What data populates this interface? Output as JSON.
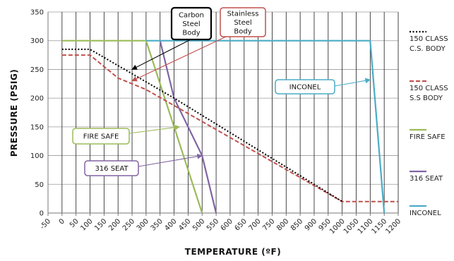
{
  "chart_data": {
    "type": "line",
    "title": "",
    "xlabel": "TEMPERATURE (ºF)",
    "ylabel": "PRESSURE (PSIG)",
    "xlim": [
      -50,
      1200
    ],
    "ylim": [
      0,
      350
    ],
    "x_ticks": [
      -50,
      0,
      50,
      100,
      150,
      200,
      250,
      300,
      350,
      400,
      450,
      500,
      550,
      600,
      650,
      700,
      750,
      800,
      850,
      900,
      950,
      1000,
      1050,
      1100,
      1150,
      1200
    ],
    "y_ticks": [
      0,
      50,
      100,
      150,
      200,
      250,
      300,
      350
    ],
    "grid": "vertical-lines-and-horizontal-lines",
    "legend_position": "right",
    "series": [
      {
        "name": "150 CLASS C.S. BODY",
        "legend_lines": [
          "150 CLASS",
          "C.S. BODY"
        ],
        "color": "#000000",
        "style": "dotted",
        "x": [
          0,
          100,
          400,
          1000
        ],
        "y": [
          285,
          285,
          200,
          20
        ]
      },
      {
        "name": "150 CLASS S.S BODY",
        "legend_lines": [
          "150 CLASS",
          "S.S BODY"
        ],
        "color": "#c0504d",
        "style": "dashed",
        "x": [
          0,
          100,
          200,
          300,
          1000,
          1200
        ],
        "y": [
          275,
          275,
          235,
          215,
          20,
          20
        ]
      },
      {
        "name": "FIRE SAFE",
        "legend_lines": [
          "FIRE SAFE"
        ],
        "color": "#9bbb59",
        "style": "solid",
        "x": [
          0,
          300,
          500
        ],
        "y": [
          300,
          300,
          0
        ]
      },
      {
        "name": "316 SEAT",
        "legend_lines": [
          "316 SEAT"
        ],
        "color": "#8064a2",
        "style": "solid",
        "x": [
          350,
          400,
          500,
          550
        ],
        "y": [
          300,
          200,
          100,
          0
        ]
      },
      {
        "name": "INCONEL",
        "legend_lines": [
          "INCONEL"
        ],
        "color": "#4bacc6",
        "style": "solid",
        "x": [
          300,
          1100,
          1150
        ],
        "y": [
          300,
          300,
          0
        ]
      }
    ],
    "annotations": [
      {
        "id": "carbon",
        "text_lines": [
          "Carbon",
          "Steel",
          "Body"
        ],
        "border_color": "#000000",
        "arrow_color": "#000000",
        "arrow_to": {
          "x": 250,
          "y": 250
        }
      },
      {
        "id": "stainless",
        "text_lines": [
          "Stainless",
          "Steel",
          "Body"
        ],
        "border_color": "#c0504d",
        "arrow_color": "#c0504d",
        "arrow_to": {
          "x": 250,
          "y": 230
        }
      },
      {
        "id": "inconel",
        "text_lines": [
          "INCONEL"
        ],
        "border_color": "#4bacc6",
        "arrow_color": "#4bacc6",
        "arrow_to": {
          "x": 1100,
          "y": 232
        }
      },
      {
        "id": "firesafe",
        "text_lines": [
          "FIRE SAFE"
        ],
        "border_color": "#9bbb59",
        "arrow_color": "#9bbb59",
        "arrow_to": {
          "x": 420,
          "y": 150
        }
      },
      {
        "id": "seat316",
        "text_lines": [
          "316 SEAT"
        ],
        "border_color": "#8064a2",
        "arrow_color": "#8064a2",
        "arrow_to": {
          "x": 500,
          "y": 100
        }
      }
    ]
  }
}
